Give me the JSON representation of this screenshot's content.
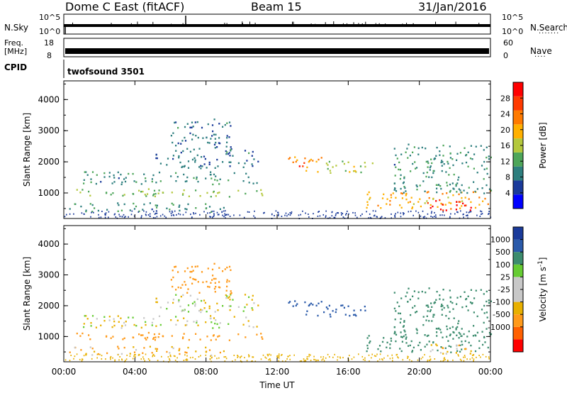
{
  "header": {
    "station": "Dome C East (fitACF)",
    "beam": "Beam 15",
    "date": "31/Jan/2016"
  },
  "panels": {
    "nsky": {
      "left_label": "N.Sky",
      "right_label": "N.Search",
      "left_ticks": [
        "10^5",
        "10^0"
      ],
      "right_ticks": [
        "10^5",
        "10^0"
      ]
    },
    "freq": {
      "left_label_1": "Freq.",
      "left_label_2": "[MHz]",
      "right_label": "Nave",
      "left_ticks": [
        "18",
        "8"
      ],
      "right_ticks": [
        "60",
        "0"
      ]
    },
    "cpid": {
      "label": "CPID",
      "value": "twofsound 3501"
    }
  },
  "colors": {
    "power_scale": [
      "#0000ff",
      "#1a3a9a",
      "#2e7f7f",
      "#4ea65a",
      "#b4c83c",
      "#ffb000",
      "#ff7a00",
      "#ff3a00",
      "#ff0000"
    ],
    "velocity_scale": [
      "#ff0000",
      "#ff6000",
      "#ff9a1a",
      "#e8b000",
      "#c8c8c8",
      "#c8c8c8",
      "#66cc33",
      "#3c8c6e",
      "#2a5aaa",
      "#1a3a9a"
    ]
  },
  "chart_data": [
    {
      "type": "heatmap",
      "title": "Power",
      "ylabel": "Slant Range [km]",
      "xlabel": "",
      "x_ticks": [
        "00:00",
        "04:00",
        "08:00",
        "12:00",
        "16:00",
        "20:00",
        "00:00"
      ],
      "y_ticks": [
        1000,
        2000,
        3000,
        4000
      ],
      "ylim": [
        180,
        4600
      ],
      "colorbar": {
        "label": "Power [dB]",
        "ticks": [
          4,
          8,
          12,
          16,
          20,
          24,
          28
        ],
        "range": [
          0,
          32
        ]
      },
      "regions": [
        {
          "t": [
            0.2,
            11.5
          ],
          "r": [
            900,
            1150
          ],
          "value": 14
        },
        {
          "t": [
            0.3,
            9.0
          ],
          "r": [
            400,
            700
          ],
          "value": 10
        },
        {
          "t": [
            1.0,
            11.0
          ],
          "r": [
            1300,
            1700
          ],
          "value": 10
        },
        {
          "t": [
            5.0,
            11.0
          ],
          "r": [
            1800,
            2400
          ],
          "value": 8
        },
        {
          "t": [
            12.6,
            14.5
          ],
          "r": [
            1700,
            2200
          ],
          "value": 22
        },
        {
          "t": [
            13.2,
            14.0
          ],
          "r": [
            1800,
            2000
          ],
          "value": 28
        },
        {
          "t": [
            14.5,
            17.5
          ],
          "r": [
            1650,
            2050
          ],
          "value": 16
        },
        {
          "t": [
            17.0,
            24.0
          ],
          "r": [
            500,
            1100
          ],
          "value": 20
        },
        {
          "t": [
            20.0,
            23.0
          ],
          "r": [
            450,
            800
          ],
          "value": 30
        },
        {
          "t": [
            18.5,
            24.0
          ],
          "r": [
            1000,
            2600
          ],
          "value": 10
        },
        {
          "t": [
            6.0,
            9.5
          ],
          "r": [
            2400,
            3400
          ],
          "value": 8
        }
      ]
    },
    {
      "type": "heatmap",
      "title": "Velocity",
      "ylabel": "Slant Range [km]",
      "xlabel": "Time UT",
      "x_ticks": [
        "00:00",
        "04:00",
        "08:00",
        "12:00",
        "16:00",
        "20:00",
        "00:00"
      ],
      "y_ticks": [
        1000,
        2000,
        3000,
        4000
      ],
      "ylim": [
        180,
        4600
      ],
      "colorbar": {
        "label": "Velocity [m s^-1]",
        "ticks": [
          1000,
          500,
          100,
          25,
          -25,
          -100,
          -500,
          -1000
        ],
        "range": [
          -1200,
          1200
        ]
      },
      "regions": [
        {
          "t": [
            0.2,
            11.5
          ],
          "r": [
            900,
            1150
          ],
          "value": -200
        },
        {
          "t": [
            0.3,
            9.0
          ],
          "r": [
            400,
            700
          ],
          "value": -80
        },
        {
          "t": [
            1.0,
            11.0
          ],
          "r": [
            1300,
            1700
          ],
          "value": 0
        },
        {
          "t": [
            5.0,
            11.0
          ],
          "r": [
            1800,
            2400
          ],
          "value": -10
        },
        {
          "t": [
            12.6,
            14.5
          ],
          "r": [
            1700,
            2200
          ],
          "value": 700
        },
        {
          "t": [
            14.5,
            17.5
          ],
          "r": [
            1650,
            2050
          ],
          "value": 900
        },
        {
          "t": [
            17.0,
            24.0
          ],
          "r": [
            500,
            1100
          ],
          "value": 300
        },
        {
          "t": [
            20.0,
            23.0
          ],
          "r": [
            450,
            800
          ],
          "value": -60
        },
        {
          "t": [
            18.5,
            24.0
          ],
          "r": [
            1000,
            2600
          ],
          "value": 300
        },
        {
          "t": [
            6.0,
            9.5
          ],
          "r": [
            2400,
            3400
          ],
          "value": -300
        }
      ]
    }
  ]
}
